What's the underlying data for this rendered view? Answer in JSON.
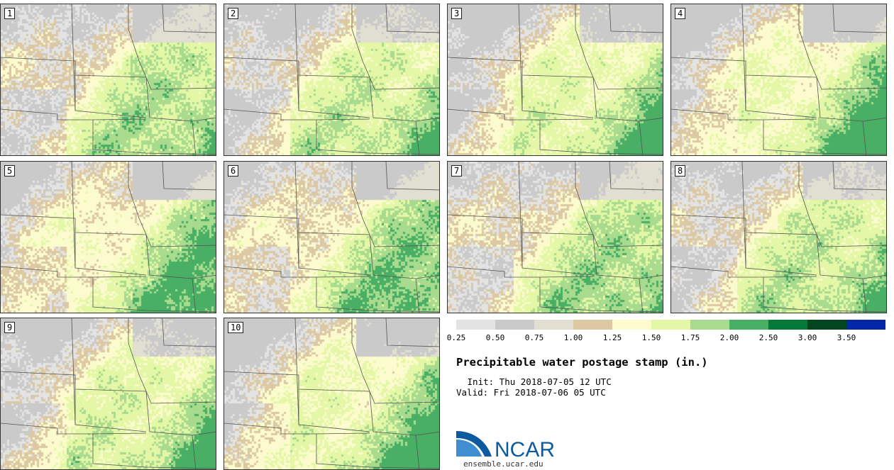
{
  "figure": {
    "title": "Precipitable water postage stamp (in.)",
    "init": " Init: Thu 2018-07-05 12 UTC",
    "valid": "Valid: Fri 2018-07-06 05 UTC"
  },
  "panels": [
    {
      "label": "1"
    },
    {
      "label": "2"
    },
    {
      "label": "3"
    },
    {
      "label": "4"
    },
    {
      "label": "5"
    },
    {
      "label": "6"
    },
    {
      "label": "7"
    },
    {
      "label": "8"
    },
    {
      "label": "9"
    },
    {
      "label": "10"
    }
  ],
  "colorbar": {
    "units": "in.",
    "bins": [
      {
        "lo": 0.25,
        "hi": 0.5,
        "color": "#e3e3e3"
      },
      {
        "lo": 0.5,
        "hi": 0.75,
        "color": "#cacaca"
      },
      {
        "lo": 0.75,
        "hi": 1.0,
        "color": "#e1ded2"
      },
      {
        "lo": 1.0,
        "hi": 1.25,
        "color": "#dcc9a3"
      },
      {
        "lo": 1.25,
        "hi": 1.5,
        "color": "#fbfbcd"
      },
      {
        "lo": 1.5,
        "hi": 1.75,
        "color": "#e3f7a6"
      },
      {
        "lo": 1.75,
        "hi": 2.0,
        "color": "#a8db8e"
      },
      {
        "lo": 2.0,
        "hi": 2.5,
        "color": "#48af65"
      },
      {
        "lo": 2.5,
        "hi": 3.0,
        "color": "#037a38"
      },
      {
        "lo": 3.0,
        "hi": 3.5,
        "color": "#02451e"
      },
      {
        "lo": 3.5,
        "hi": null,
        "color": "#0228a8"
      }
    ],
    "tick_labels": [
      "0.25",
      "0.50",
      "0.75",
      "1.00",
      "1.25",
      "1.50",
      "1.75",
      "2.00",
      "2.50",
      "3.00",
      "3.50"
    ]
  },
  "logo": {
    "text": "NCAR",
    "url": "ensemble.ucar.edu",
    "color": "#0d5a9e"
  }
}
